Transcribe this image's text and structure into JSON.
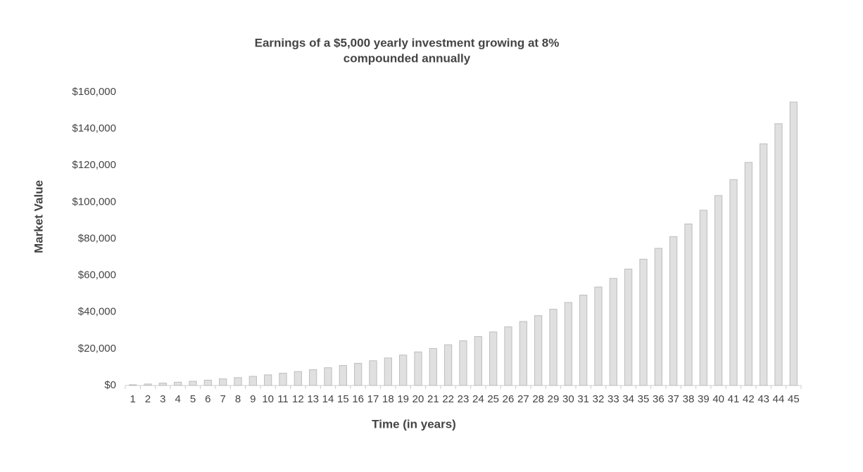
{
  "chart_data": {
    "type": "bar",
    "title": "Earnings of a $5,000 yearly investment growing at 8%",
    "subtitle": "compounded annually",
    "x_label": "Time (in years)",
    "y_label": "Market Value",
    "categories": [
      "1",
      "2",
      "3",
      "4",
      "5",
      "6",
      "7",
      "8",
      "9",
      "10",
      "11",
      "12",
      "13",
      "14",
      "15",
      "16",
      "17",
      "18",
      "19",
      "20",
      "21",
      "22",
      "23",
      "24",
      "25",
      "26",
      "27",
      "28",
      "29",
      "30",
      "31",
      "32",
      "33",
      "34",
      "35",
      "36",
      "37",
      "38",
      "39",
      "40",
      "41",
      "42",
      "43",
      "44",
      "45"
    ],
    "values": [
      400,
      800,
      1300,
      1800,
      2300,
      2900,
      3600,
      4300,
      5000,
      5800,
      6700,
      7600,
      8600,
      9700,
      10900,
      12100,
      13500,
      15000,
      16600,
      18300,
      20200,
      22200,
      24400,
      26700,
      29200,
      32000,
      34900,
      38100,
      41600,
      45300,
      49300,
      53700,
      58400,
      63500,
      68900,
      74800,
      81200,
      88100,
      95600,
      103600,
      112300,
      121700,
      131800,
      142800,
      154600
    ],
    "color": "#e0e0e0",
    "ylim": [
      0,
      160000
    ],
    "yticks": [
      {
        "value": 0,
        "label": "$0"
      },
      {
        "value": 20000,
        "label": "$20,000"
      },
      {
        "value": 40000,
        "label": "$40,000"
      },
      {
        "value": 60000,
        "label": "$60,000"
      },
      {
        "value": 80000,
        "label": "$80,000"
      },
      {
        "value": 100000,
        "label": "$100,000"
      },
      {
        "value": 120000,
        "label": "$120,000"
      },
      {
        "value": 140000,
        "label": "$140,000"
      },
      {
        "value": 160000,
        "label": "$160,000"
      }
    ],
    "grid": false
  }
}
